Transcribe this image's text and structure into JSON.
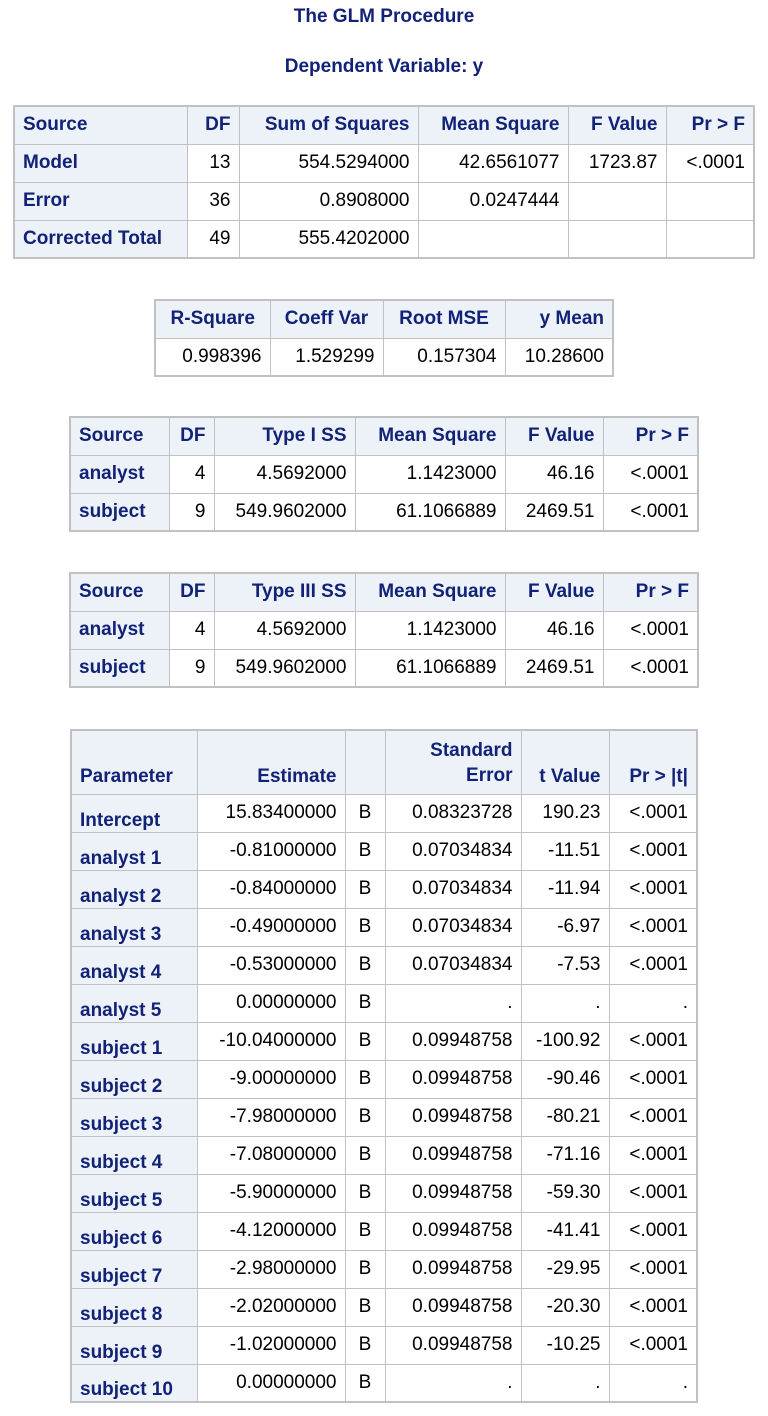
{
  "titles": {
    "procedure": "The GLM Procedure",
    "dependent": "Dependent Variable: y"
  },
  "anova": {
    "headers": [
      "Source",
      "DF",
      "Sum of Squares",
      "Mean Square",
      "F Value",
      "Pr > F"
    ],
    "rows": [
      [
        "Model",
        "13",
        "554.5294000",
        "42.6561077",
        "1723.87",
        "<.0001"
      ],
      [
        "Error",
        "36",
        "0.8908000",
        "0.0247444",
        "",
        ""
      ],
      [
        "Corrected Total",
        "49",
        "555.4202000",
        "",
        "",
        ""
      ]
    ]
  },
  "fit": {
    "headers": [
      "R-Square",
      "Coeff Var",
      "Root MSE",
      "y Mean"
    ],
    "values": [
      "0.998396",
      "1.529299",
      "0.157304",
      "10.28600"
    ]
  },
  "type1": {
    "headers": [
      "Source",
      "DF",
      "Type I SS",
      "Mean Square",
      "F Value",
      "Pr > F"
    ],
    "rows": [
      [
        "analyst",
        "4",
        "4.5692000",
        "1.1423000",
        "46.16",
        "<.0001"
      ],
      [
        "subject",
        "9",
        "549.9602000",
        "61.1066889",
        "2469.51",
        "<.0001"
      ]
    ]
  },
  "type3": {
    "headers": [
      "Source",
      "DF",
      "Type III SS",
      "Mean Square",
      "F Value",
      "Pr > F"
    ],
    "rows": [
      [
        "analyst",
        "4",
        "4.5692000",
        "1.1423000",
        "46.16",
        "<.0001"
      ],
      [
        "subject",
        "9",
        "549.9602000",
        "61.1066889",
        "2469.51",
        "<.0001"
      ]
    ]
  },
  "params": {
    "headers": [
      "Parameter",
      "Estimate",
      "",
      "Standard",
      "Error",
      "t Value",
      "Pr > |t|"
    ],
    "rows": [
      [
        "Intercept",
        "15.83400000",
        "B",
        "0.08323728",
        "190.23",
        "<.0001"
      ],
      [
        "analyst 1",
        "-0.81000000",
        "B",
        "0.07034834",
        "-11.51",
        "<.0001"
      ],
      [
        "analyst 2",
        "-0.84000000",
        "B",
        "0.07034834",
        "-11.94",
        "<.0001"
      ],
      [
        "analyst 3",
        "-0.49000000",
        "B",
        "0.07034834",
        "-6.97",
        "<.0001"
      ],
      [
        "analyst 4",
        "-0.53000000",
        "B",
        "0.07034834",
        "-7.53",
        "<.0001"
      ],
      [
        "analyst 5",
        "0.00000000",
        "B",
        ".",
        ".",
        "."
      ],
      [
        "subject 1",
        "-10.04000000",
        "B",
        "0.09948758",
        "-100.92",
        "<.0001"
      ],
      [
        "subject 2",
        "-9.00000000",
        "B",
        "0.09948758",
        "-90.46",
        "<.0001"
      ],
      [
        "subject 3",
        "-7.98000000",
        "B",
        "0.09948758",
        "-80.21",
        "<.0001"
      ],
      [
        "subject 4",
        "-7.08000000",
        "B",
        "0.09948758",
        "-71.16",
        "<.0001"
      ],
      [
        "subject 5",
        "-5.90000000",
        "B",
        "0.09948758",
        "-59.30",
        "<.0001"
      ],
      [
        "subject 6",
        "-4.12000000",
        "B",
        "0.09948758",
        "-41.41",
        "<.0001"
      ],
      [
        "subject 7",
        "-2.98000000",
        "B",
        "0.09948758",
        "-29.95",
        "<.0001"
      ],
      [
        "subject 8",
        "-2.02000000",
        "B",
        "0.09948758",
        "-20.30",
        "<.0001"
      ],
      [
        "subject 9",
        "-1.02000000",
        "B",
        "0.09948758",
        "-10.25",
        "<.0001"
      ],
      [
        "subject 10",
        "0.00000000",
        "B",
        ".",
        ".",
        "."
      ]
    ]
  }
}
